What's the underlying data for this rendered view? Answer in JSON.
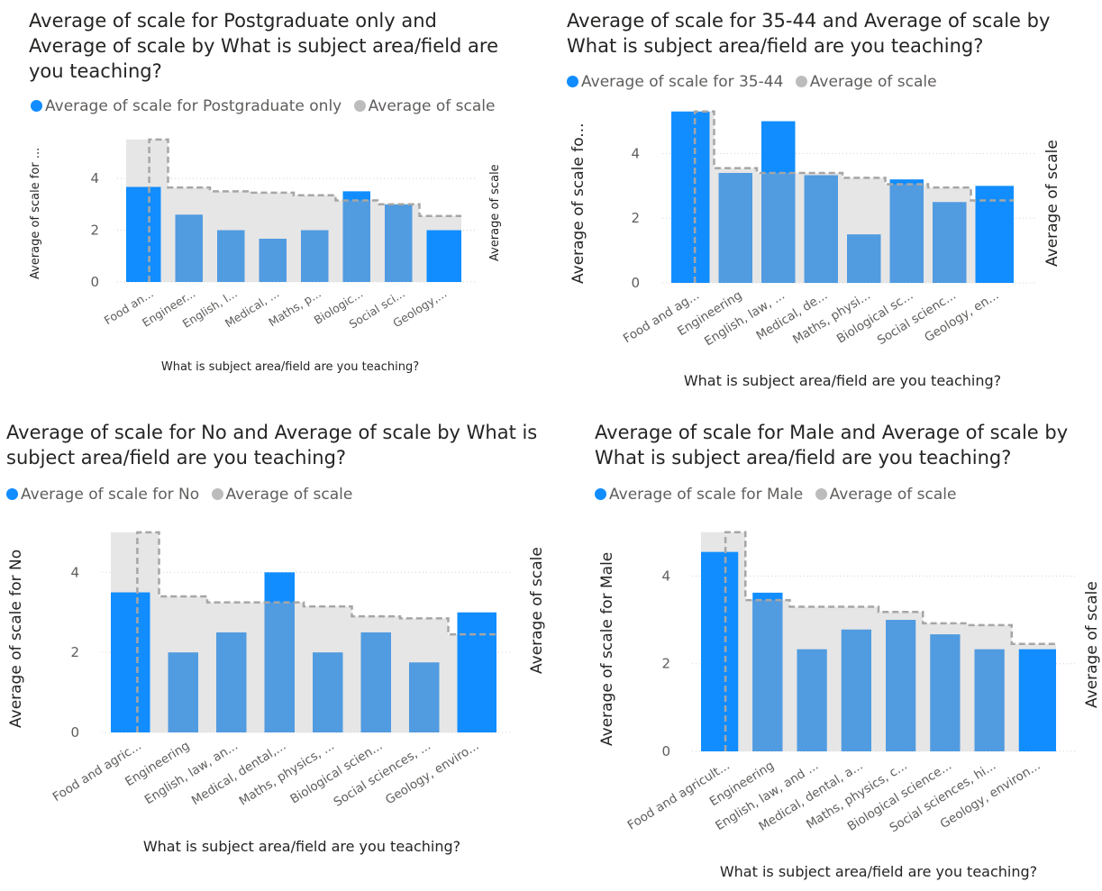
{
  "colors": {
    "primary": "#118dff",
    "bar": "#519be0",
    "gray_area": "#e6e6e6",
    "gray_line": "#a6a6a6",
    "legend_gray": "#bcbcbc"
  },
  "chart_data": [
    {
      "type": "bar",
      "title": "Average of scale for Postgraduate only and Average of scale by What is subject area/field are you teaching?",
      "legend": [
        "Average of scale for Postgraduate only",
        "Average of scale"
      ],
      "xlabel": "What is subject area/field are you teaching?",
      "ylabel": "Average of scale for ...",
      "y2label": "Average of scale",
      "yticks": [
        "0",
        "2",
        "4"
      ],
      "ylim": [
        0,
        5.6
      ],
      "categories": [
        "Food an...",
        "Engineer...",
        "English, l...",
        "Medical, ...",
        "Maths, p...",
        "Biologic...",
        "Social sci...",
        "Geology,..."
      ],
      "series": [
        {
          "name": "Average of scale for Postgraduate only",
          "values": [
            3.67,
            2.6,
            2.0,
            1.67,
            2.0,
            3.5,
            3.0,
            2.0
          ]
        },
        {
          "name": "Average of scale",
          "values": [
            5.5,
            3.65,
            3.5,
            3.45,
            3.35,
            3.15,
            3.0,
            2.55
          ]
        }
      ]
    },
    {
      "type": "bar",
      "title": "Average of scale for 35-44 and Average of scale by What is subject area/field are you teaching?",
      "legend": [
        "Average of scale for 35-44",
        "Average of scale"
      ],
      "xlabel": "What is subject area/field are you teaching?",
      "ylabel": "Average of scale fo...",
      "y2label": "Average of scale",
      "yticks": [
        "0",
        "2",
        "4"
      ],
      "ylim": [
        0,
        5.6
      ],
      "categories": [
        "Food and ag...",
        "Engineering",
        "English, law, ...",
        "Medical, de...",
        "Maths, physi...",
        "Biological sc...",
        "Social scienc...",
        "Geology, en..."
      ],
      "series": [
        {
          "name": "Average of scale for 35-44",
          "values": [
            5.3,
            3.4,
            5.0,
            3.33,
            1.5,
            3.2,
            2.5,
            3.0
          ]
        },
        {
          "name": "Average of scale",
          "values": [
            5.3,
            3.55,
            3.4,
            3.4,
            3.25,
            3.05,
            2.95,
            2.55
          ]
        }
      ]
    },
    {
      "type": "bar",
      "title": "Average of scale for No and Average of scale by What is subject area/field are you teaching?",
      "legend": [
        "Average of scale for No",
        "Average of scale"
      ],
      "xlabel": "What is subject area/field are you teaching?",
      "ylabel": "Average of scale for No",
      "y2label": "Average of scale",
      "yticks": [
        "0",
        "2",
        "4"
      ],
      "ylim": [
        0,
        5.2
      ],
      "categories": [
        "Food and agric...",
        "Engineering",
        "English, law, an...",
        "Medical, dental,...",
        "Maths, physics, ...",
        "Biological scien...",
        "Social sciences, ...",
        "Geology, enviro..."
      ],
      "series": [
        {
          "name": "Average of scale for No",
          "values": [
            3.5,
            2.0,
            2.5,
            4.0,
            2.0,
            2.5,
            1.75,
            3.0
          ]
        },
        {
          "name": "Average of scale",
          "values": [
            5.0,
            3.4,
            3.25,
            3.25,
            3.15,
            2.9,
            2.85,
            2.45
          ]
        }
      ]
    },
    {
      "type": "bar",
      "title": "Average of scale for Male and Average of scale by What is subject area/field are you teaching?",
      "legend": [
        "Average of scale for Male",
        "Average of scale"
      ],
      "xlabel": "What is subject area/field are you teaching?",
      "ylabel": "Average of scale for Male",
      "y2label": "Average of scale",
      "yticks": [
        "0",
        "2",
        "4"
      ],
      "ylim": [
        0,
        5.2
      ],
      "categories": [
        "Food and agricult...",
        "Engineering",
        "English, law, and ...",
        "Medical, dental, a...",
        "Maths, physics, c...",
        "Biological science...",
        "Social sciences, hi...",
        "Geology, environ..."
      ],
      "series": [
        {
          "name": "Average of scale for Male",
          "values": [
            4.55,
            3.62,
            2.33,
            2.78,
            3.0,
            2.67,
            2.33,
            2.33
          ]
        },
        {
          "name": "Average of scale",
          "values": [
            5.0,
            3.45,
            3.3,
            3.3,
            3.18,
            2.92,
            2.88,
            2.45
          ]
        }
      ]
    }
  ]
}
